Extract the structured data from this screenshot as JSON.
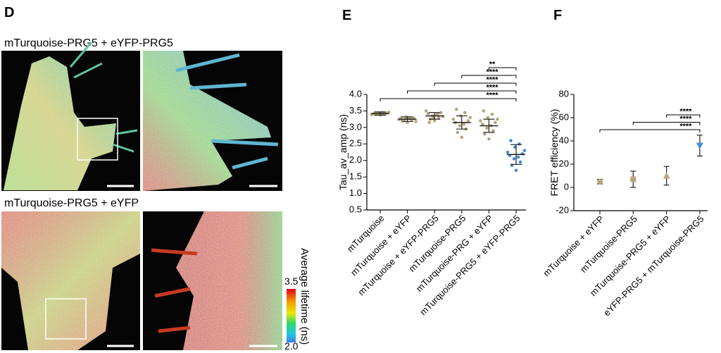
{
  "panel_d": {
    "label": "D",
    "rows": [
      {
        "title": "mTurquoise-PRG5 + eYFP-PRG5"
      },
      {
        "title": "mTurquoise-PRG5 + eYFP"
      }
    ],
    "colorbar": {
      "label": "Average lifetime (ns)",
      "max": "3.5",
      "min": "2.0"
    }
  },
  "chart_data": [
    {
      "type": "strip",
      "label": "E",
      "y_label": "Tau_av_amp (ns)",
      "categories": [
        "mTurquoise",
        "mTurquoise + eYFP",
        "mTurquoise + eYFP-PRG5",
        "mTurquoise-PRG5",
        "mTurquoise-PRG + eYFP",
        "mTurquoise-PRG5 + eYFP-PRG5"
      ],
      "values": [
        3.42,
        3.25,
        3.35,
        3.15,
        3.05,
        2.18
      ],
      "errors": [
        0.05,
        0.07,
        0.1,
        0.2,
        0.2,
        0.3
      ],
      "points": [
        [
          3.38,
          3.4,
          3.42,
          3.44,
          3.45,
          3.41,
          3.43,
          3.39,
          3.46,
          3.42,
          3.4,
          3.44
        ],
        [
          3.15,
          3.2,
          3.22,
          3.25,
          3.27,
          3.3,
          3.28,
          3.24,
          3.18,
          3.32,
          3.26,
          3.21
        ],
        [
          3.2,
          3.25,
          3.3,
          3.35,
          3.38,
          3.42,
          3.45,
          3.5,
          3.33,
          3.28,
          3.4,
          3.15
        ],
        [
          2.7,
          2.85,
          2.95,
          3.05,
          3.1,
          3.15,
          3.2,
          3.25,
          3.3,
          3.35,
          3.45,
          3.55
        ],
        [
          2.65,
          2.8,
          2.9,
          2.98,
          3.05,
          3.1,
          3.15,
          3.2,
          3.25,
          3.3,
          3.4,
          3.5
        ],
        [
          1.7,
          1.85,
          1.95,
          2.05,
          2.1,
          2.15,
          2.2,
          2.25,
          2.3,
          2.4,
          2.5,
          2.6
        ]
      ],
      "colors": [
        "#b8a67c",
        "#b8a67c",
        "#b8a67c",
        "#b8a67c",
        "#b8a67c",
        "#3d8fdc"
      ],
      "ylim": [
        0.5,
        4.0
      ],
      "yticks": [
        0.5,
        {
          "value": 1,
          "label": "1.0"
        },
        1.5,
        {
          "value": 2,
          "label": "2.0"
        },
        2.5,
        {
          "value": 3,
          "label": "3.0"
        },
        3.5,
        {
          "value": 4,
          "label": "4.0"
        }
      ],
      "comparisons": [
        {
          "groups": [
            "mTurquoise",
            "mTurquoise-PRG5 + eYFP-PRG5"
          ],
          "label": "****"
        },
        {
          "groups": [
            "mTurquoise + eYFP",
            "mTurquoise-PRG5 + eYFP-PRG5"
          ],
          "label": "****"
        },
        {
          "groups": [
            "mTurquoise + eYFP-PRG5",
            "mTurquoise-PRG5 + eYFP-PRG5"
          ],
          "label": "****"
        },
        {
          "groups": [
            "mTurquoise-PRG5",
            "mTurquoise-PRG5 + eYFP-PRG5"
          ],
          "label": "****"
        },
        {
          "groups": [
            "mTurquoise-PRG + eYFP",
            "mTurquoise-PRG5 + eYFP-PRG5"
          ],
          "label": "**"
        }
      ]
    },
    {
      "type": "errorbar",
      "label": "F",
      "y_label": "FRET efficiency (%)",
      "categories": [
        "mTurquoise + eYFP",
        "mTurquoise-PRG5",
        "mTurquoise-PRG5 + eYFP",
        "eYFP-PRG5 + mTurquoise-PRG5"
      ],
      "values": [
        5,
        7,
        10,
        36
      ],
      "errors": [
        2,
        7,
        8,
        9
      ],
      "colors": [
        "#b8a67c",
        "#b8a67c",
        "#b8a67c",
        "#3d8fdc"
      ],
      "markers": [
        "circle",
        "square",
        "triangle",
        "triangle-down"
      ],
      "ylim": [
        -20,
        80
      ],
      "yticks": [
        -20,
        0,
        20,
        40,
        60,
        80
      ],
      "comparisons": [
        {
          "groups": [
            "mTurquoise + eYFP",
            "eYFP-PRG5 + mTurquoise-PRG5"
          ],
          "label": "****"
        },
        {
          "groups": [
            "mTurquoise-PRG5",
            "eYFP-PRG5 + mTurquoise-PRG5"
          ],
          "label": "****"
        },
        {
          "groups": [
            "mTurquoise-PRG5 + eYFP",
            "eYFP-PRG5 + mTurquoise-PRG5"
          ],
          "label": "****"
        }
      ]
    }
  ]
}
